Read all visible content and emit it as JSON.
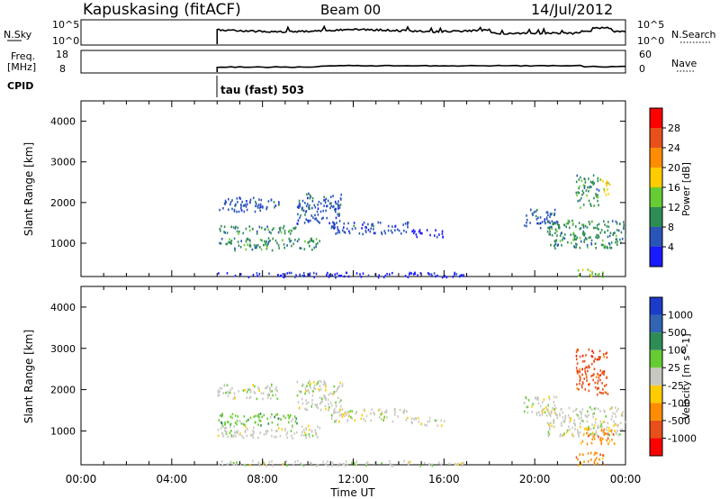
{
  "header": {
    "station": "Kapuskasing (fitACF)",
    "beam": "Beam 00",
    "date": "14/Jul/2012"
  },
  "top_panels": {
    "nsky": {
      "label": "N.Sky",
      "left_ticks": [
        "10^5",
        "10^0"
      ],
      "right_ticks": [
        "10^5",
        "10^0"
      ],
      "right_label": "N.Search"
    },
    "freq": {
      "label_line1": "Freq.",
      "label_line2": "[MHz]",
      "left_ticks": [
        "18",
        "8"
      ],
      "right_ticks": [
        "60",
        "0"
      ],
      "right_label": "Nave"
    },
    "cpid": {
      "label": "CPID",
      "text": "tau (fast) 503"
    }
  },
  "chart_data": [
    {
      "type": "heatmap",
      "name": "power",
      "xlabel": "Time UT",
      "ylabel": "Slant Range [km]",
      "x_ticks": [
        "00:00",
        "04:00",
        "08:00",
        "12:00",
        "16:00",
        "20:00",
        "00:00"
      ],
      "x_range_hours": [
        0,
        24
      ],
      "ylim": [
        180,
        4500
      ],
      "y_ticks": [
        1000,
        2000,
        3000,
        4000
      ],
      "colorbar": {
        "label": "Power [dB]",
        "ticks": [
          "4",
          "8",
          "12",
          "16",
          "20",
          "24",
          "28"
        ],
        "colors": [
          "#1a1aff",
          "#2a55b8",
          "#2e8c55",
          "#66cc33",
          "#ffcc00",
          "#ff8c00",
          "#e8501a",
          "#ff0000"
        ]
      },
      "regions": [
        {
          "t0": 6.0,
          "t1": 8.7,
          "r0": 1800,
          "r1": 2150,
          "level": 1
        },
        {
          "t0": 6.0,
          "t1": 9.5,
          "r0": 1250,
          "r1": 1450,
          "level": 2
        },
        {
          "t0": 6.0,
          "t1": 10.5,
          "r0": 850,
          "r1": 1150,
          "level": 2
        },
        {
          "t0": 9.5,
          "t1": 11.5,
          "r0": 1500,
          "r1": 2250,
          "level": 1
        },
        {
          "t0": 11.0,
          "t1": 14.5,
          "r0": 1250,
          "r1": 1550,
          "level": 1
        },
        {
          "t0": 14.5,
          "t1": 16.0,
          "r0": 1150,
          "r1": 1350,
          "level": 0
        },
        {
          "t0": 19.5,
          "t1": 21.0,
          "r0": 1400,
          "r1": 1850,
          "level": 1
        },
        {
          "t0": 20.5,
          "t1": 24.0,
          "r0": 900,
          "r1": 1600,
          "level": 2
        },
        {
          "t0": 21.8,
          "t1": 22.8,
          "r0": 1900,
          "r1": 2700,
          "level": 2
        },
        {
          "t0": 22.8,
          "t1": 23.3,
          "r0": 2200,
          "r1": 2600,
          "level": 4
        },
        {
          "t0": 21.8,
          "t1": 23.0,
          "r0": 200,
          "r1": 400,
          "level": 3
        },
        {
          "t0": 6.0,
          "t1": 17.0,
          "r0": 180,
          "r1": 300,
          "level": 0
        }
      ]
    },
    {
      "type": "heatmap",
      "name": "velocity",
      "xlabel": "Time UT",
      "ylabel": "Slant Range [km]",
      "x_ticks": [
        "00:00",
        "04:00",
        "08:00",
        "12:00",
        "16:00",
        "20:00",
        "00:00"
      ],
      "x_range_hours": [
        0,
        24
      ],
      "ylim": [
        180,
        4500
      ],
      "y_ticks": [
        1000,
        2000,
        3000,
        4000
      ],
      "colorbar": {
        "label": "Velocity [m s^-1]",
        "ticks": [
          "1000",
          "500",
          "100",
          "25",
          "-25",
          "-100",
          "-500",
          "-1000"
        ],
        "colors": [
          "#1a3cc8",
          "#3264b4",
          "#2e8c55",
          "#66cc33",
          "#c8c8c0",
          "#ffcc00",
          "#ff8c00",
          "#e8501a",
          "#ff0000"
        ]
      },
      "regions": [
        {
          "t0": 6.0,
          "t1": 8.7,
          "r0": 1800,
          "r1": 2150,
          "level": 4
        },
        {
          "t0": 6.0,
          "t1": 9.5,
          "r0": 1150,
          "r1": 1450,
          "level": 3
        },
        {
          "t0": 6.0,
          "t1": 10.5,
          "r0": 850,
          "r1": 1150,
          "level": 4
        },
        {
          "t0": 9.5,
          "t1": 11.5,
          "r0": 1500,
          "r1": 2250,
          "level": 4
        },
        {
          "t0": 11.0,
          "t1": 14.5,
          "r0": 1250,
          "r1": 1550,
          "level": 4
        },
        {
          "t0": 14.5,
          "t1": 16.0,
          "r0": 1150,
          "r1": 1350,
          "level": 4
        },
        {
          "t0": 19.5,
          "t1": 21.0,
          "r0": 1400,
          "r1": 1850,
          "level": 4
        },
        {
          "t0": 20.5,
          "t1": 24.0,
          "r0": 900,
          "r1": 1600,
          "level": 4
        },
        {
          "t0": 21.8,
          "t1": 23.2,
          "r0": 1900,
          "r1": 3000,
          "level": 7
        },
        {
          "t0": 22.0,
          "t1": 23.5,
          "r0": 700,
          "r1": 1100,
          "level": 6
        },
        {
          "t0": 21.8,
          "t1": 23.0,
          "r0": 200,
          "r1": 500,
          "level": 6
        },
        {
          "t0": 6.0,
          "t1": 17.0,
          "r0": 180,
          "r1": 300,
          "level": 4
        }
      ]
    }
  ]
}
